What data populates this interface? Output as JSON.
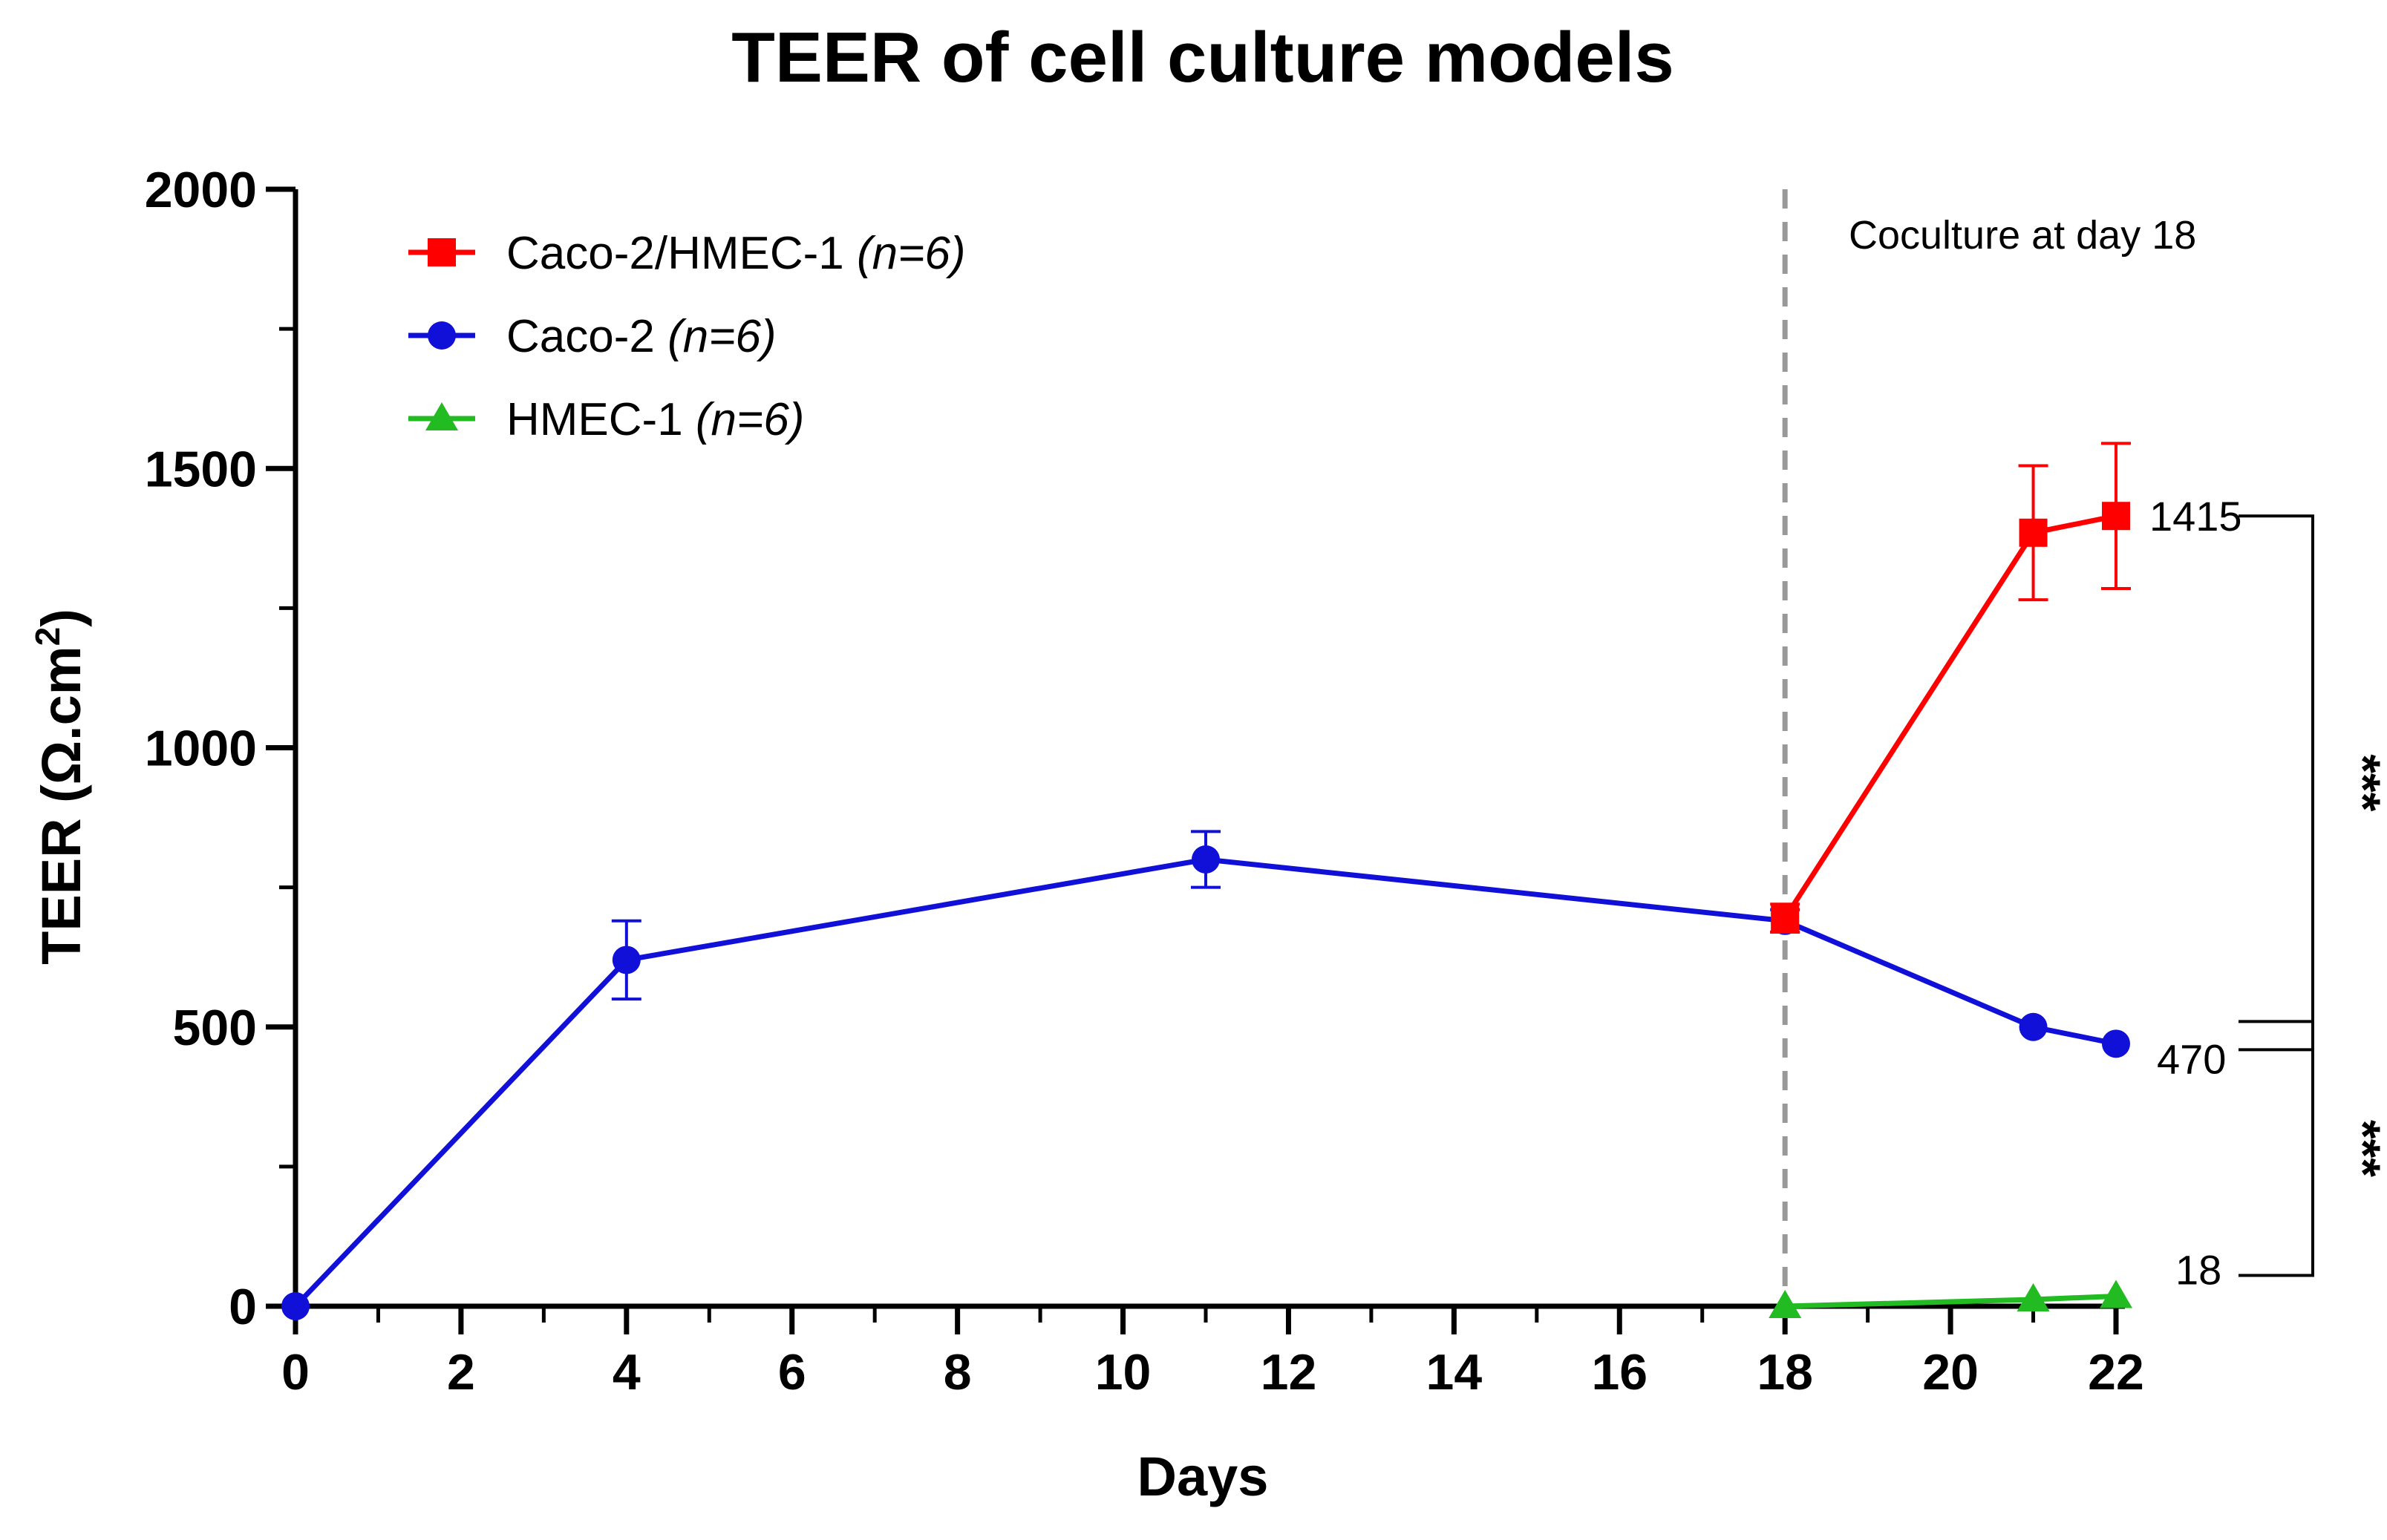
{
  "chart_data": {
    "type": "line",
    "title": "TEER of cell culture models",
    "xlabel": "Days",
    "ylabel_main": "TEER (Ω.cm",
    "ylabel_sup": "2",
    "ylabel_close": ")",
    "xlim": [
      0,
      22
    ],
    "ylim": [
      0,
      2000
    ],
    "xticks": [
      0,
      2,
      4,
      6,
      8,
      10,
      12,
      14,
      16,
      18,
      20,
      22
    ],
    "xticklabels": [
      "0",
      "2",
      "4",
      "6",
      "8",
      "10",
      "12",
      "14",
      "16",
      "18",
      "20",
      "22"
    ],
    "yticks": [
      0,
      500,
      1000,
      1500,
      2000
    ],
    "yticklabels": [
      "0",
      "500",
      "1000",
      "1500",
      "2000"
    ],
    "legend_position": "top-left",
    "series": [
      {
        "name": "Caco-2/HMEC-1",
        "n_label": "(n=6)",
        "color": "#ff0000",
        "marker": "square",
        "x": [
          18,
          21,
          22
        ],
        "y": [
          695,
          1385,
          1415
        ],
        "err": [
          25,
          120,
          130
        ]
      },
      {
        "name": "Caco-2",
        "n_label": "(n=6)",
        "color": "#1010d8",
        "marker": "circle",
        "x": [
          0,
          4,
          11,
          18,
          21,
          22
        ],
        "y": [
          0,
          620,
          800,
          690,
          500,
          470
        ],
        "err": [
          0,
          70,
          50,
          20,
          0,
          0
        ]
      },
      {
        "name": "HMEC-1",
        "n_label": "(n=6)",
        "color": "#22bb22",
        "marker": "triangle",
        "x": [
          18,
          21,
          22
        ],
        "y": [
          0,
          12,
          18
        ],
        "err": [
          0,
          0,
          0
        ]
      }
    ],
    "vline": {
      "x": 18,
      "label": "Coculture at day 18",
      "color": "#999999"
    },
    "end_values": [
      {
        "label": "1415",
        "y": 1415
      },
      {
        "label": "470",
        "y": 470
      },
      {
        "label": "18",
        "y": 18
      }
    ],
    "significance": [
      {
        "label": "***",
        "y_from": 470,
        "y_to": 1415
      },
      {
        "label": "***",
        "y_from": 18,
        "y_to": 470
      }
    ]
  }
}
